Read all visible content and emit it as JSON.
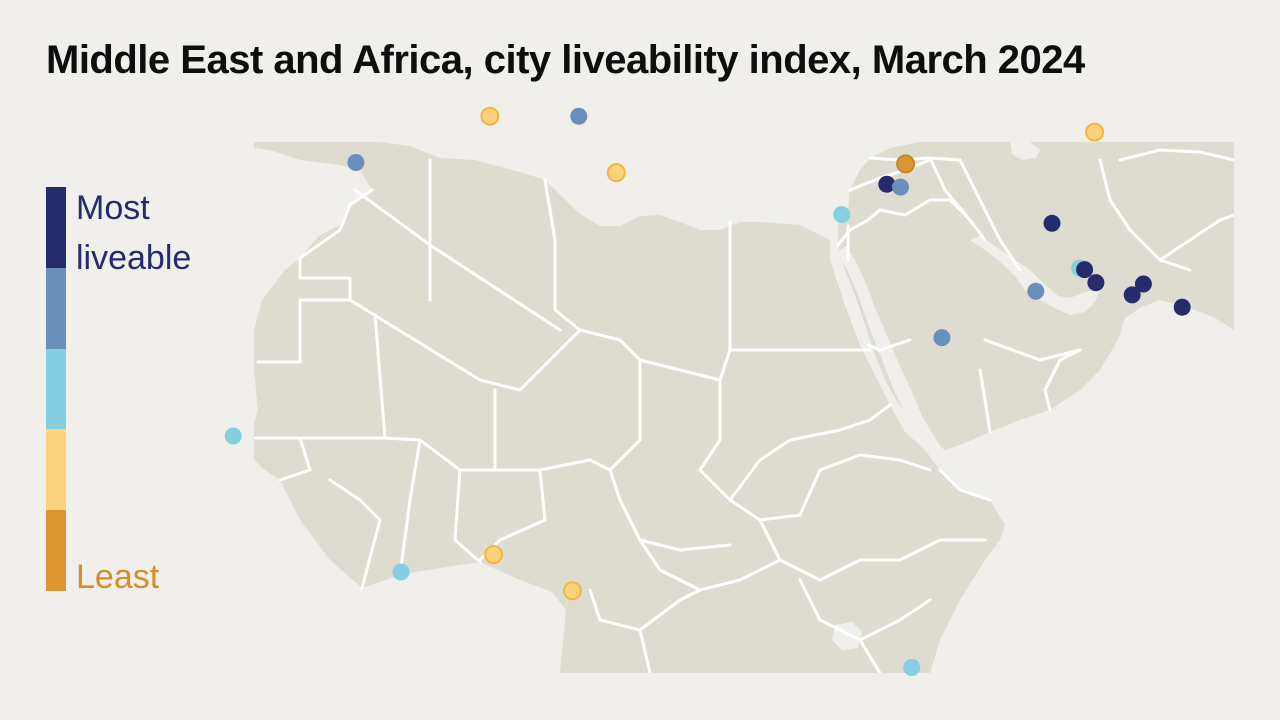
{
  "title": "Middle East and Africa, city liveability index, March 2024",
  "legend": {
    "top_label": "Most liveable",
    "bottom_label": "Least",
    "scale": [
      {
        "level": 1,
        "color": "#252b6b"
      },
      {
        "level": 2,
        "color": "#6b8fba"
      },
      {
        "level": 3,
        "color": "#85d0e0"
      },
      {
        "level": 4,
        "color": "#fdd27e"
      },
      {
        "level": 5,
        "color": "#dc9530"
      }
    ]
  },
  "colors": {
    "background": "#f0efeb",
    "sea": "#f0efeb",
    "land": "#dedcd1",
    "border": "#ffffff",
    "title": "#0e0e0e",
    "most": "#252b6b",
    "least": "#d28f28"
  },
  "cities": [
    {
      "id": "casablanca",
      "lat": 33.6,
      "lon": -7.6,
      "level": 2
    },
    {
      "id": "algiers",
      "lat": 36.8,
      "lon": 3.1,
      "level": 4
    },
    {
      "id": "tunis",
      "lat": 36.8,
      "lon": 10.2,
      "level": 2
    },
    {
      "id": "tripoli",
      "lat": 32.9,
      "lon": 13.2,
      "level": 4
    },
    {
      "id": "cairo",
      "lat": 30.0,
      "lon": 31.2,
      "level": 3
    },
    {
      "id": "damascus",
      "lat": 33.5,
      "lon": 36.3,
      "level": 5
    },
    {
      "id": "tel-aviv",
      "lat": 32.1,
      "lon": 34.8,
      "level": 1
    },
    {
      "id": "amman",
      "lat": 31.9,
      "lon": 35.9,
      "level": 2
    },
    {
      "id": "tehran",
      "lat": 35.7,
      "lon": 51.4,
      "level": 4
    },
    {
      "id": "kuwait-city",
      "lat": 29.4,
      "lon": 48.0,
      "level": 1
    },
    {
      "id": "al-khobar",
      "lat": 26.3,
      "lon": 50.2,
      "level": 3
    },
    {
      "id": "bahrain",
      "lat": 26.2,
      "lon": 50.6,
      "level": 1
    },
    {
      "id": "doha",
      "lat": 25.3,
      "lon": 51.5,
      "level": 1
    },
    {
      "id": "riyadh",
      "lat": 24.7,
      "lon": 46.7,
      "level": 2
    },
    {
      "id": "abu-dhabi",
      "lat": 24.45,
      "lon": 54.4,
      "level": 1
    },
    {
      "id": "dubai",
      "lat": 25.2,
      "lon": 55.3,
      "level": 1
    },
    {
      "id": "muscat",
      "lat": 23.6,
      "lon": 58.4,
      "level": 1
    },
    {
      "id": "jeddah",
      "lat": 21.5,
      "lon": 39.2,
      "level": 2
    },
    {
      "id": "dakar",
      "lat": 14.7,
      "lon": -17.4,
      "level": 3
    },
    {
      "id": "abidjan",
      "lat": 5.3,
      "lon": -4.0,
      "level": 3
    },
    {
      "id": "lagos",
      "lat": 6.5,
      "lon": 3.4,
      "level": 4
    },
    {
      "id": "douala",
      "lat": 4.0,
      "lon": 9.7,
      "level": 4
    },
    {
      "id": "nairobi",
      "lat": -1.3,
      "lon": 36.8,
      "level": 3
    }
  ]
}
